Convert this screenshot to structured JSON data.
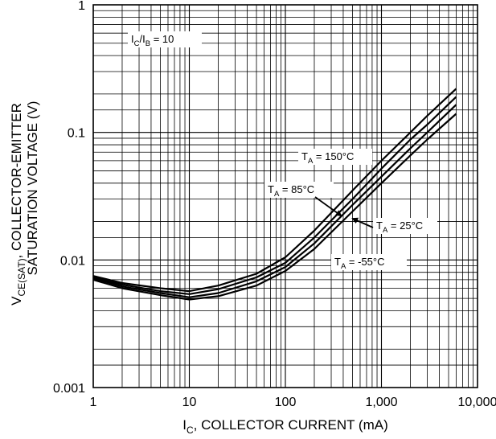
{
  "chart_data": {
    "type": "line",
    "x_scale": "log",
    "y_scale": "log",
    "xlim": [
      1,
      10000
    ],
    "ylim": [
      0.001,
      1
    ],
    "grid": true,
    "xlabel": {
      "main": "I",
      "sub": "C",
      "rest": ", COLLECTOR CURRENT (mA)"
    },
    "ylabel": {
      "line1_main": "V",
      "line1_sub": "CE(SAT)",
      "line1_rest": ", COLLECTOR-EMITTER",
      "line2": "SATURATION VOLTAGE (V)"
    },
    "x_ticks": [
      {
        "value": 1,
        "label": "1"
      },
      {
        "value": 10,
        "label": "10"
      },
      {
        "value": 100,
        "label": "100"
      },
      {
        "value": 1000,
        "label": "1,000"
      },
      {
        "value": 10000,
        "label": "10,000"
      }
    ],
    "y_ticks": [
      {
        "value": 0.001,
        "label": "0.001"
      },
      {
        "value": 0.01,
        "label": "0.01"
      },
      {
        "value": 0.1,
        "label": "0.1"
      },
      {
        "value": 1,
        "label": "1"
      }
    ],
    "condition": {
      "main": "I",
      "sub1": "C",
      "mid": "/I",
      "sub2": "B",
      "rest": " = 10"
    },
    "series": [
      {
        "key": "t150",
        "label": {
          "main": "T",
          "sub": "A",
          "rest": " = 150°C"
        },
        "x": [
          1,
          2,
          5,
          10,
          20,
          50,
          100,
          200,
          500,
          1000,
          2000,
          3000,
          6000
        ],
        "y": [
          0.0075,
          0.0066,
          0.006,
          0.0057,
          0.0063,
          0.0078,
          0.0105,
          0.017,
          0.035,
          0.06,
          0.1,
          0.135,
          0.22
        ]
      },
      {
        "key": "t85",
        "label": {
          "main": "T",
          "sub": "A",
          "rest": " = 85°C"
        },
        "x": [
          1,
          2,
          5,
          10,
          20,
          50,
          100,
          200,
          500,
          1000,
          2000,
          3000,
          6000
        ],
        "y": [
          0.0073,
          0.0064,
          0.0057,
          0.0054,
          0.0059,
          0.0073,
          0.0095,
          0.015,
          0.03,
          0.052,
          0.088,
          0.115,
          0.19
        ]
      },
      {
        "key": "t25",
        "label": {
          "main": "T",
          "sub": "A",
          "rest": " = 25°C"
        },
        "x": [
          1,
          2,
          5,
          10,
          20,
          50,
          100,
          200,
          500,
          1000,
          2000,
          3000,
          6000
        ],
        "y": [
          0.0072,
          0.0062,
          0.0055,
          0.0051,
          0.0055,
          0.0068,
          0.0088,
          0.0135,
          0.027,
          0.045,
          0.075,
          0.1,
          0.165
        ]
      },
      {
        "key": "tm55",
        "label": {
          "main": "T",
          "sub": "A",
          "rest": " = -55°C"
        },
        "x": [
          1,
          2,
          5,
          10,
          20,
          50,
          100,
          200,
          500,
          1000,
          2000,
          3000,
          6000
        ],
        "y": [
          0.007,
          0.006,
          0.0053,
          0.0049,
          0.0052,
          0.0063,
          0.0082,
          0.0122,
          0.024,
          0.04,
          0.066,
          0.088,
          0.14
        ]
      }
    ]
  }
}
